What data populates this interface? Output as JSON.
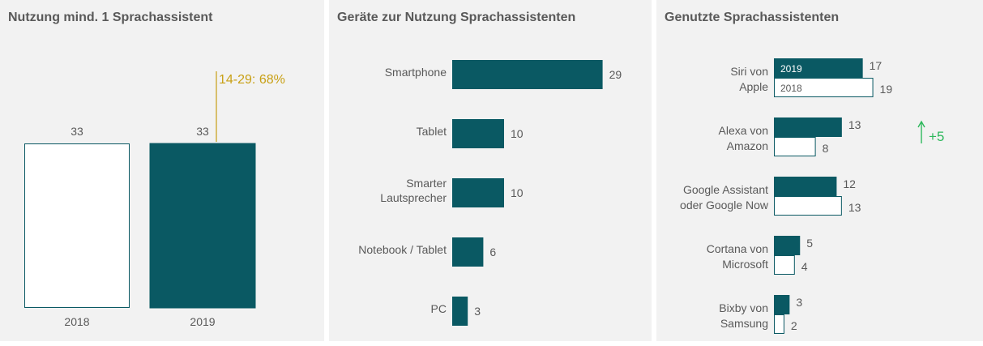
{
  "colors": {
    "primary": "#0a5963",
    "outline": "#0a5963",
    "panel_bg": "#f2f2f2",
    "text": "#595959",
    "annotation_gold": "#c8a015",
    "increase_green": "#2eb85c"
  },
  "chart_data": [
    {
      "type": "bar",
      "title": "Nutzung mind. 1 Sprachassistent",
      "categories": [
        "2018",
        "2019"
      ],
      "values": [
        33,
        33
      ],
      "styles": [
        "outline",
        "filled"
      ],
      "ylim": [
        0,
        40
      ],
      "annotation": {
        "text": "14-29: 68%",
        "category": "2019"
      }
    },
    {
      "type": "bar",
      "orientation": "horizontal",
      "title": "Geräte zur Nutzung Sprachassistenten",
      "categories": [
        [
          "Smartphone"
        ],
        [
          "Tablet"
        ],
        [
          "Smarter",
          "Lautsprecher"
        ],
        [
          "Notebook / Tablet"
        ],
        [
          "PC"
        ]
      ],
      "values": [
        29,
        10,
        10,
        6,
        3
      ],
      "xlim": [
        0,
        35
      ]
    },
    {
      "type": "bar",
      "orientation": "horizontal",
      "title": "Genutzte Sprachassistenten",
      "categories": [
        [
          "Siri von",
          "Apple"
        ],
        [
          "Alexa von",
          "Amazon"
        ],
        [
          "Google Assistant",
          "oder Google Now"
        ],
        [
          "Cortana von",
          "Microsoft"
        ],
        [
          "Bixby von",
          "Samsung"
        ]
      ],
      "series": [
        {
          "name": "2019",
          "values": [
            17,
            13,
            12,
            5,
            3
          ]
        },
        {
          "name": "2018",
          "values": [
            19,
            8,
            13,
            4,
            2
          ]
        }
      ],
      "xlim": [
        0,
        24
      ],
      "annotation": {
        "text": "+5",
        "category_index": 1,
        "arrow": "up"
      }
    }
  ]
}
